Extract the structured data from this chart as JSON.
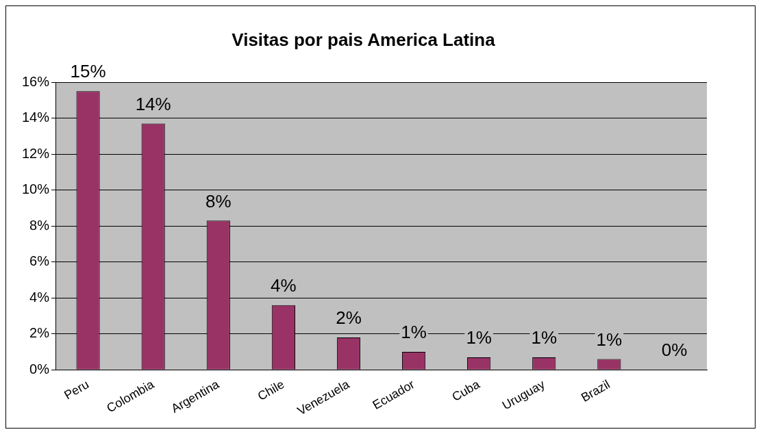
{
  "chart_data": {
    "type": "bar",
    "title": "Visitas por pais America Latina",
    "categories": [
      "Peru",
      "Colombia",
      "Argentina",
      "Chile",
      "Venezuela",
      "Ecuador",
      "Cuba",
      "Uruguay",
      "Brazil",
      null
    ],
    "values": [
      15.5,
      13.7,
      8.3,
      3.6,
      1.8,
      1.0,
      0.7,
      0.7,
      0.6,
      0
    ],
    "value_labels": [
      "15%",
      "14%",
      "8%",
      "4%",
      "2%",
      "1%",
      "1%",
      "1%",
      "1%",
      "0%"
    ],
    "color": "#993366",
    "ylim": [
      0,
      16
    ],
    "yticks": [
      {
        "value": 0,
        "label": "0%"
      },
      {
        "value": 2,
        "label": "2%"
      },
      {
        "value": 4,
        "label": "4%"
      },
      {
        "value": 6,
        "label": "6%"
      },
      {
        "value": 8,
        "label": "8%"
      },
      {
        "value": 10,
        "label": "10%"
      },
      {
        "value": 12,
        "label": "12%"
      },
      {
        "value": 14,
        "label": "14%"
      },
      {
        "value": 16,
        "label": "16%"
      }
    ],
    "grid": "y",
    "legend": false
  }
}
